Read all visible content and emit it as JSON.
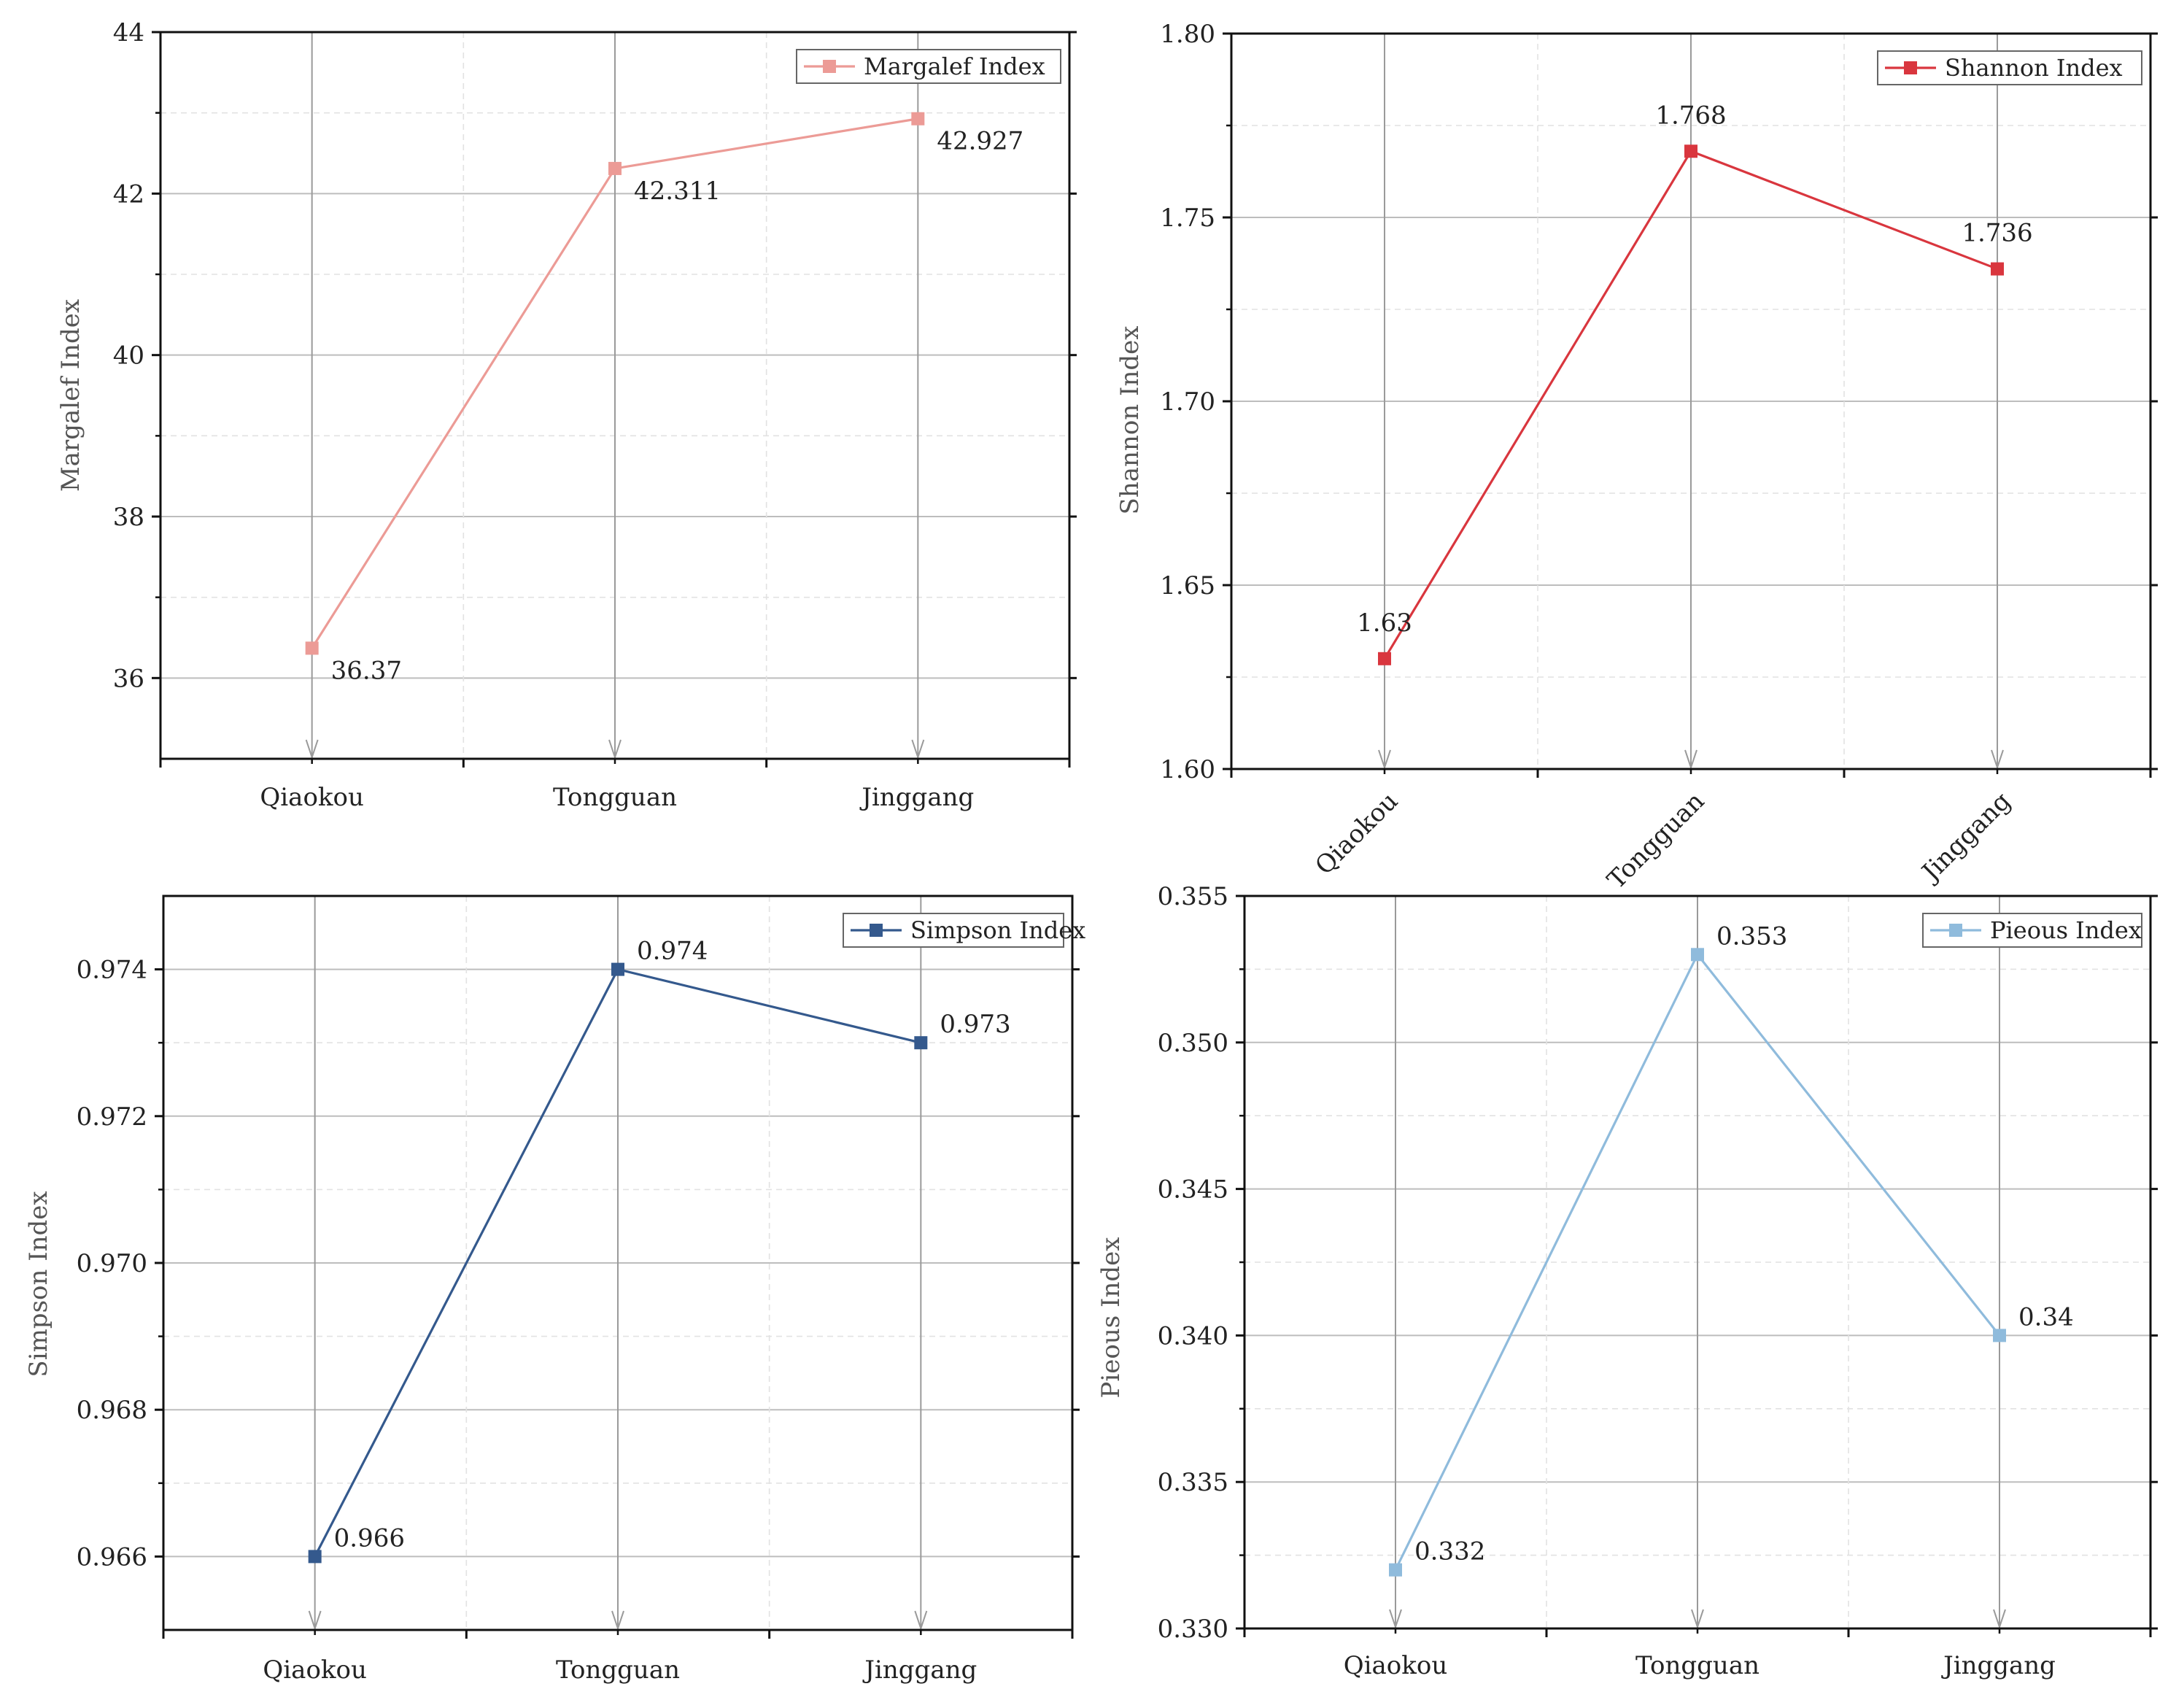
{
  "chart_data": [
    {
      "type": "line",
      "title": "",
      "xlabel": "",
      "ylabel": "Margalef Index",
      "categories": [
        "Qiaokou",
        "Tongguan",
        "Jinggang"
      ],
      "series": [
        {
          "name": "Margalef Index",
          "values": [
            36.37,
            42.311,
            42.927
          ]
        }
      ],
      "data_labels": [
        "36.37",
        "42.311",
        "42.927"
      ],
      "ylim": [
        35,
        44
      ],
      "yticks": [
        36,
        38,
        40,
        42,
        44
      ],
      "ytick_labels": [
        "36",
        "38",
        "40",
        "42",
        "44"
      ],
      "color": "#ec9b96",
      "legend": "top-right",
      "label_pos": "below-right",
      "x_tick_rotation": 0,
      "grid": true
    },
    {
      "type": "line",
      "title": "",
      "xlabel": "",
      "ylabel": "Shannon Index",
      "categories": [
        "Qiaokou",
        "Tongguan",
        "Jinggang"
      ],
      "series": [
        {
          "name": "Shannon Index",
          "values": [
            1.63,
            1.768,
            1.736
          ]
        }
      ],
      "data_labels": [
        "1.63",
        "1.768",
        "1.736"
      ],
      "ylim": [
        1.6,
        1.8
      ],
      "yticks": [
        1.6,
        1.65,
        1.7,
        1.75,
        1.8
      ],
      "ytick_labels": [
        "1.60",
        "1.65",
        "1.70",
        "1.75",
        "1.80"
      ],
      "color": "#d9363e",
      "legend": "top-right",
      "label_pos": "above",
      "x_tick_rotation": -45,
      "grid": true
    },
    {
      "type": "line",
      "title": "",
      "xlabel": "",
      "ylabel": "Simpson Index",
      "categories": [
        "Qiaokou",
        "Tongguan",
        "Jinggang"
      ],
      "series": [
        {
          "name": "Simpson Index",
          "values": [
            0.966,
            0.974,
            0.973
          ]
        }
      ],
      "data_labels": [
        "0.966",
        "0.974",
        "0.973"
      ],
      "ylim": [
        0.965,
        0.975
      ],
      "yticks": [
        0.966,
        0.968,
        0.97,
        0.972,
        0.974
      ],
      "ytick_labels": [
        "0.966",
        "0.968",
        "0.970",
        "0.972",
        "0.974"
      ],
      "color": "#34598d",
      "legend": "top-right",
      "label_pos": "above-right",
      "x_tick_rotation": 0,
      "grid": true
    },
    {
      "type": "line",
      "title": "",
      "xlabel": "",
      "ylabel": "Pieous Index",
      "categories": [
        "Qiaokou",
        "Tongguan",
        "Jinggang"
      ],
      "series": [
        {
          "name": "Pieous Index",
          "values": [
            0.332,
            0.353,
            0.34
          ]
        }
      ],
      "data_labels": [
        "0.332",
        "0.353",
        "0.34"
      ],
      "ylim": [
        0.33,
        0.355
      ],
      "yticks": [
        0.33,
        0.335,
        0.34,
        0.345,
        0.35,
        0.355
      ],
      "ytick_labels": [
        "0.330",
        "0.335",
        "0.340",
        "0.345",
        "0.350",
        "0.355"
      ],
      "color": "#8fbbdc",
      "legend": "top-right",
      "label_pos": "above-right",
      "x_tick_rotation": 0,
      "grid": true
    }
  ]
}
